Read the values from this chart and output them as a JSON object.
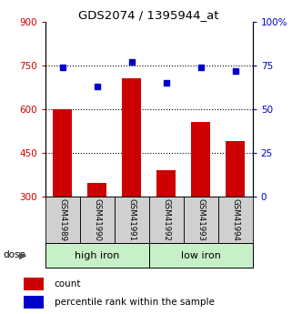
{
  "title": "GDS2074 / 1395944_at",
  "categories": [
    "GSM41989",
    "GSM41990",
    "GSM41991",
    "GSM41992",
    "GSM41993",
    "GSM41994"
  ],
  "bar_values": [
    600,
    345,
    705,
    390,
    555,
    490
  ],
  "scatter_values": [
    74,
    63,
    77,
    65,
    74,
    72
  ],
  "ylim_left": [
    300,
    900
  ],
  "ylim_right": [
    0,
    100
  ],
  "yticks_left": [
    300,
    450,
    600,
    750,
    900
  ],
  "yticks_right": [
    0,
    25,
    50,
    75,
    100
  ],
  "ytick_right_labels": [
    "0",
    "25",
    "50",
    "75",
    "100%"
  ],
  "hlines": [
    450,
    600,
    750
  ],
  "bar_color": "#cc0000",
  "scatter_color": "#0000cc",
  "group1_label": "high iron",
  "group2_label": "low iron",
  "legend1": "count",
  "legend2": "percentile rank within the sample",
  "left_tick_color": "#cc0000",
  "right_tick_color": "#0000cc",
  "group_bg_color": "#c8f0c8",
  "sample_label_bg": "#d0d0d0",
  "fig_width": 3.21,
  "fig_height": 3.45,
  "dpi": 100
}
